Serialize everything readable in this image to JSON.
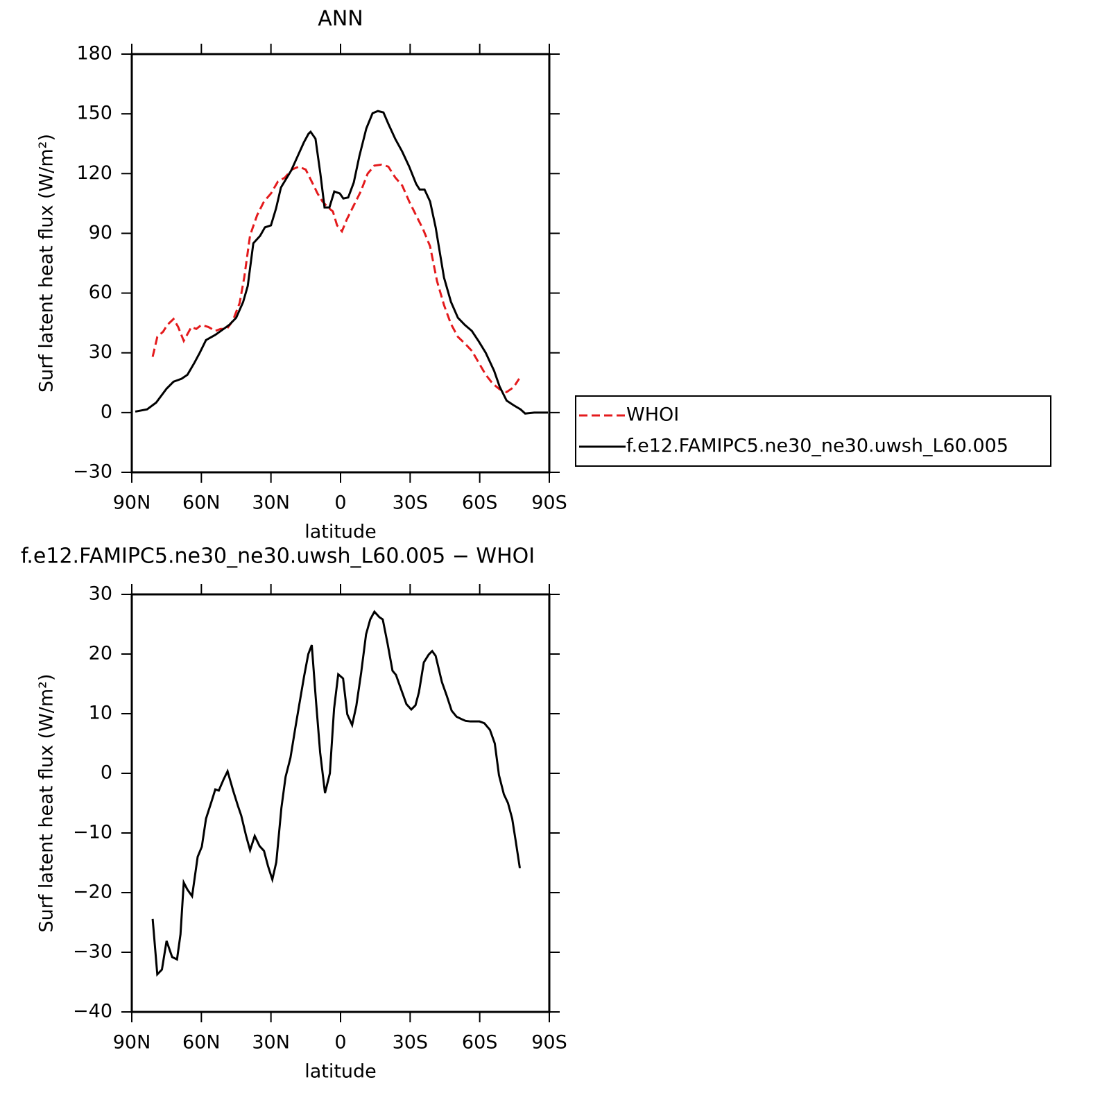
{
  "chart_data": [
    {
      "type": "line",
      "title": "ANN",
      "xlabel": "latitude",
      "ylabel": "Surf latent heat flux (W/m²)",
      "xlim": [
        90,
        -90
      ],
      "xticks": [
        {
          "value": 90,
          "label": "90N"
        },
        {
          "value": 60,
          "label": "60N"
        },
        {
          "value": 30,
          "label": "30N"
        },
        0,
        {
          "value": -30,
          "label": "30S"
        },
        {
          "value": -60,
          "label": "60S"
        },
        {
          "value": -90,
          "label": "90S"
        }
      ],
      "ylim": [
        -30,
        180
      ],
      "yticks": [
        {
          "value": -30,
          "label": "−30"
        },
        0,
        30,
        60,
        90,
        120,
        150,
        180
      ],
      "legend": "right",
      "series": [
        {
          "name": "WHOI",
          "color": "#e41a1c",
          "dash": "dashed",
          "x": [
            81,
            79,
            76.5,
            74.7,
            72,
            70,
            67.6,
            64.3,
            62.2,
            60,
            57,
            54,
            51.7,
            49,
            46.5,
            43.5,
            41.5,
            39,
            36,
            33,
            30,
            27,
            24,
            21,
            18,
            15,
            12,
            9.9,
            7.8,
            5.4,
            3.3,
            1.5,
            -0.6,
            -2.7,
            -5.7,
            -8.7,
            -11.7,
            -14.6,
            -17.6,
            -20.6,
            -23.6,
            -26.6,
            -29.6,
            -32.6,
            -35.6,
            -38.6,
            -41.6,
            -44.6,
            -47.6,
            -50.6,
            -53.6,
            -56.6,
            -59.6,
            -62.6,
            -65.6,
            -68.6,
            -71.6,
            -74.6,
            -77
          ],
          "values": [
            28,
            38,
            40.6,
            44,
            47,
            43,
            36,
            43,
            42,
            44,
            43,
            41,
            42,
            42,
            46,
            55,
            68,
            89,
            99,
            106,
            110,
            116,
            118,
            122,
            123.5,
            122,
            115,
            110,
            106,
            103,
            101,
            94,
            91,
            97,
            104,
            111,
            120,
            124,
            124.5,
            123.5,
            118,
            114,
            106,
            99,
            92,
            83.5,
            66,
            54,
            44.5,
            38,
            34.7,
            31,
            25,
            19,
            14.5,
            11.7,
            10.3,
            12.7,
            17
          ]
        },
        {
          "name": "f.e12.FAMIPC5.ne30_ne30.uwsh_L60.005",
          "color": "#000000",
          "dash": "solid",
          "x": [
            88.5,
            83.4,
            79.5,
            75,
            72,
            68.5,
            66,
            63,
            60.7,
            58,
            54,
            51,
            48,
            45,
            42,
            40,
            37.6,
            34.7,
            32.6,
            30,
            27.8,
            25.7,
            21.2,
            18,
            15.8,
            13.8,
            12.9,
            10.8,
            8.7,
            6.9,
            4.8,
            2.7,
            0.3,
            -1.2,
            -3.3,
            -5.7,
            -8.1,
            -11.1,
            -13.8,
            -16.1,
            -18.5,
            -20.6,
            -23.6,
            -26.6,
            -29.6,
            -32.6,
            -34.1,
            -36.2,
            -38.6,
            -41,
            -44.6,
            -47.6,
            -50.6,
            -53.6,
            -56.6,
            -59.6,
            -62.6,
            -66.2,
            -68.6,
            -71.6,
            -74.6,
            -77.6,
            -79.6,
            -83.5,
            -86.5,
            -89.4
          ],
          "values": [
            0.5,
            1.6,
            5,
            12,
            15.5,
            17,
            19,
            25,
            30,
            36.4,
            39,
            41.5,
            44,
            47.6,
            55.5,
            63.6,
            85,
            88.7,
            93,
            94,
            102.5,
            113,
            121.7,
            130,
            135.7,
            140,
            141,
            137.5,
            120,
            103,
            103,
            111,
            110,
            107.5,
            108,
            115.5,
            128.7,
            142.6,
            150.3,
            151.4,
            150.7,
            145,
            137.4,
            131,
            123.5,
            114.8,
            112,
            112,
            106,
            93,
            67.8,
            55.6,
            47.6,
            44,
            41,
            35.7,
            30,
            21,
            13,
            6,
            3.7,
            1.6,
            -0.5,
            0,
            0,
            0
          ]
        }
      ]
    },
    {
      "type": "line",
      "title": "f.e12.FAMIPC5.ne30_ne30.uwsh_L60.005 − WHOI",
      "xlabel": "latitude",
      "ylabel": "Surf latent heat flux (W/m²)",
      "xlim": [
        90,
        -90
      ],
      "xticks": [
        {
          "value": 90,
          "label": "90N"
        },
        {
          "value": 60,
          "label": "60N"
        },
        {
          "value": 30,
          "label": "30N"
        },
        0,
        {
          "value": -30,
          "label": "30S"
        },
        {
          "value": -60,
          "label": "60S"
        },
        {
          "value": -90,
          "label": "90S"
        }
      ],
      "ylim": [
        -40,
        30
      ],
      "yticks": [
        {
          "value": -40,
          "label": "−40"
        },
        {
          "value": -30,
          "label": "−30"
        },
        {
          "value": -20,
          "label": "−20"
        },
        {
          "value": -10,
          "label": "−10"
        },
        0,
        10,
        20,
        30
      ],
      "series": [
        {
          "color": "#000000",
          "dash": "solid",
          "x": [
            81,
            79,
            77,
            75,
            72.6,
            70.5,
            69,
            67.6,
            66,
            64,
            61.6,
            59.8,
            58,
            55.6,
            54,
            52.5,
            50.4,
            48.7,
            46.3,
            44.2,
            42.8,
            40.7,
            39,
            37,
            34.9,
            33,
            31.3,
            29.4,
            27.7,
            25.5,
            23.7,
            21.6,
            19.5,
            17.5,
            15.7,
            13.9,
            12.4,
            10.6,
            8.8,
            6.7,
            4.6,
            2.8,
            1,
            -1.1,
            -2.9,
            -5,
            -6.8,
            -8.9,
            -11,
            -12.8,
            -14.6,
            -16.7,
            -18.2,
            -20.3,
            -22.4,
            -23.9,
            -26,
            -28.4,
            -30.5,
            -32.3,
            -33.8,
            -35.9,
            -38,
            -39.5,
            -41,
            -43.7,
            -45.8,
            -47.9,
            -50,
            -52.1,
            -53.9,
            -56,
            -57.8,
            -59.9,
            -62,
            -64.4,
            -66.5,
            -68.3,
            -70.4,
            -72.2,
            -74,
            -75.5,
            -77.3
          ],
          "values": [
            -24.4,
            -33.7,
            -32.9,
            -28.1,
            -30.8,
            -31.2,
            -27,
            -18.3,
            -19.5,
            -20.6,
            -14,
            -12.3,
            -7.6,
            -4.7,
            -2.7,
            -2.9,
            -1,
            0.35,
            -2.9,
            -5.5,
            -7.1,
            -10.5,
            -12.9,
            -10.5,
            -12.2,
            -13,
            -15.5,
            -17.8,
            -14.9,
            -5.8,
            -0.6,
            2.6,
            7.6,
            12.2,
            16.3,
            20,
            21.5,
            12.2,
            3.5,
            -3.3,
            0,
            10.8,
            16.6,
            15.9,
            9.9,
            8.1,
            11.3,
            16.9,
            23.3,
            25.8,
            27.1,
            26.2,
            25.8,
            21.7,
            17.2,
            16.5,
            14.2,
            11.6,
            10.7,
            11.4,
            13.6,
            18.6,
            19.9,
            20.5,
            19.7,
            15.3,
            13,
            10.5,
            9.5,
            9.1,
            8.8,
            8.7,
            8.7,
            8.7,
            8.4,
            7.3,
            5,
            -0.3,
            -3.5,
            -5,
            -7.6,
            -11.3,
            -15.9
          ]
        }
      ]
    }
  ]
}
